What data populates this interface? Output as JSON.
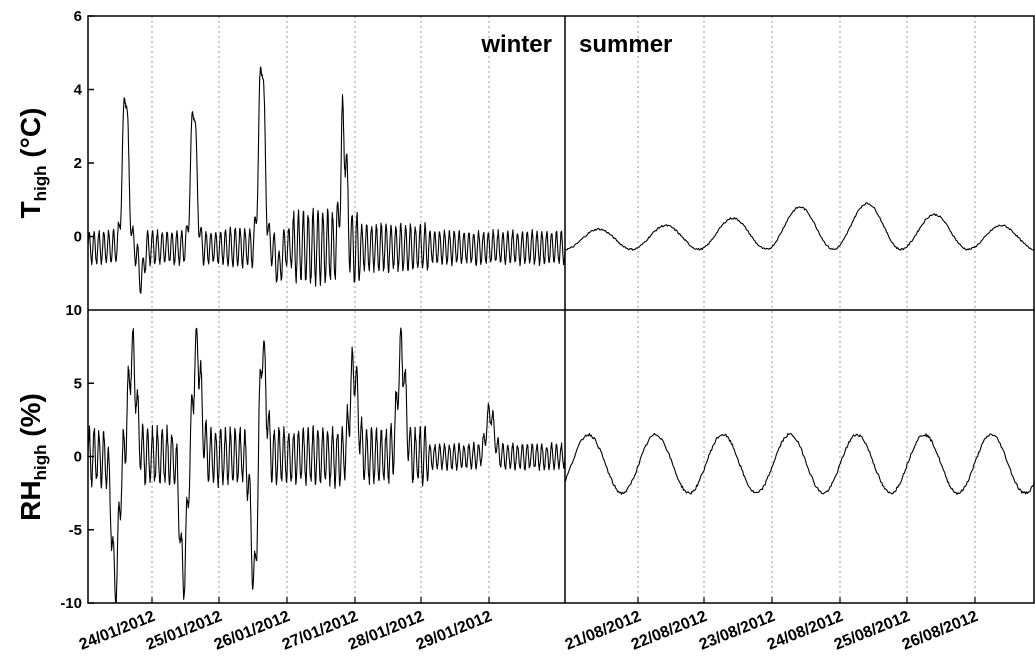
{
  "chart_data": {
    "type": "line",
    "season_labels": {
      "winter": "winter",
      "summer": "summer"
    },
    "panels": [
      {
        "id": "T",
        "ylabel_main": "T",
        "ylabel_sub": "high",
        "ylabel_unit": " (°C)",
        "ylim": [
          -2,
          6
        ],
        "yticks": [
          0,
          2,
          4,
          6
        ],
        "ytick_labels": [
          "0",
          "2",
          "4",
          "6"
        ],
        "grid": "vertical dotted",
        "winter_peaks": [
          [
            0.55,
            4.0
          ],
          [
            1.55,
            3.6
          ],
          [
            2.55,
            4.9
          ],
          [
            3.75,
            3.0
          ]
        ],
        "winter_osc_amp": [
          0.5,
          0.5,
          0.6,
          1.1,
          0.7,
          0.5
        ],
        "summer_daily_peaks": [
          0.2,
          0.3,
          0.5,
          0.8,
          0.9,
          0.6,
          0.3
        ]
      },
      {
        "id": "RH",
        "ylabel_main": "RH",
        "ylabel_sub": "high",
        "ylabel_unit": " (%)",
        "ylim": [
          -10,
          10
        ],
        "yticks": [
          -10,
          -5,
          0,
          5,
          10
        ],
        "ytick_labels": [
          "-10",
          "-5",
          "0",
          "5",
          "10"
        ],
        "grid": "vertical dotted",
        "winter_peaks": [
          [
            0.65,
            7.0
          ],
          [
            1.6,
            7.5
          ],
          [
            2.55,
            8.3
          ],
          [
            3.9,
            6.0
          ],
          [
            4.6,
            7.2
          ],
          [
            5.9,
            3.0
          ]
        ],
        "winter_troughs": [
          [
            0.4,
            -8.7
          ],
          [
            1.4,
            -8.2
          ],
          [
            2.45,
            -10.0
          ]
        ],
        "summer_daily_range": [
          -2.0,
          2.8
        ]
      }
    ],
    "winter_dates": [
      "24/01/2012",
      "25/01/2012",
      "26/01/2012",
      "27/01/2012",
      "28/01/2012",
      "29/01/2012"
    ],
    "summer_dates": [
      "21/08/2012",
      "22/08/2012",
      "23/08/2012",
      "24/08/2012",
      "25/08/2012",
      "26/08/2012"
    ]
  }
}
